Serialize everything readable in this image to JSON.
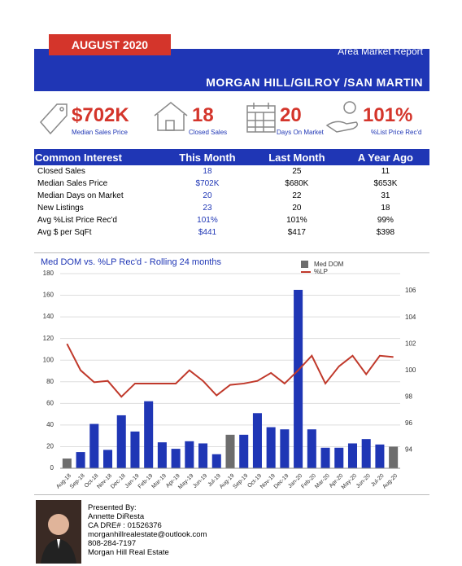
{
  "header": {
    "month": "AUGUST 2020",
    "report": "Area Market Report",
    "area": "MORGAN HILL/GILROY /SAN MARTIN"
  },
  "stats": [
    {
      "value": "$702K",
      "label": "Median Sales Price"
    },
    {
      "value": "18",
      "label": "Closed Sales"
    },
    {
      "value": "20",
      "label": "Days On Market"
    },
    {
      "value": "101%",
      "label": "%List Price Rec'd"
    }
  ],
  "table": {
    "header": [
      "Common Interest",
      "This Month",
      "Last Month",
      "A Year Ago"
    ],
    "rows": [
      [
        "Closed Sales",
        "18",
        "25",
        "11"
      ],
      [
        "Median Sales Price",
        "$702K",
        "$680K",
        "$653K"
      ],
      [
        "Median Days on Market",
        "20",
        "22",
        "31"
      ],
      [
        "New Listings",
        "23",
        "20",
        "18"
      ],
      [
        "Avg %List Price Rec'd",
        "101%",
        "101%",
        "99%"
      ],
      [
        "Avg $ per SqFt",
        "$441",
        "$417",
        "$398"
      ]
    ]
  },
  "chart_data": {
    "type": "bar-line",
    "title": "Med DOM vs. %LP Rec'd - Rolling 24 months",
    "categories": [
      "Aug-18",
      "Sep-18",
      "Oct-18",
      "Nov-18",
      "Dec-18",
      "Jan-19",
      "Feb-19",
      "Mar-19",
      "Apr-19",
      "May-19",
      "Jun-19",
      "Jul-19",
      "Aug-19",
      "Sep-19",
      "Oct-19",
      "Nov-19",
      "Dec-19",
      "Jan-20",
      "Feb-20",
      "Mar-20",
      "Apr-20",
      "May-20",
      "Jun-20",
      "Jul-20",
      "Aug-20"
    ],
    "series": [
      {
        "name": "Med DOM",
        "color": "#6d6d6d",
        "bar_colors": [
          "#6d6d6d",
          "#1f36b5",
          "#1f36b5",
          "#1f36b5",
          "#1f36b5",
          "#1f36b5",
          "#1f36b5",
          "#1f36b5",
          "#1f36b5",
          "#1f36b5",
          "#1f36b5",
          "#1f36b5",
          "#6d6d6d",
          "#1f36b5",
          "#1f36b5",
          "#1f36b5",
          "#1f36b5",
          "#1f36b5",
          "#1f36b5",
          "#1f36b5",
          "#1f36b5",
          "#1f36b5",
          "#1f36b5",
          "#1f36b5",
          "#6d6d6d"
        ],
        "values": [
          9,
          15,
          41,
          17,
          49,
          34,
          62,
          24,
          18,
          25,
          23,
          13,
          31,
          31,
          51,
          38,
          36,
          165,
          36,
          19,
          19,
          23,
          27,
          22,
          20
        ]
      },
      {
        "name": "%LP",
        "color": "#c0392b",
        "axis": "y2",
        "values": [
          102,
          100,
          99.1,
          99.2,
          98,
          99,
          99,
          99,
          99,
          100,
          99.2,
          98.1,
          98.9,
          99,
          99.2,
          99.8,
          99,
          100,
          101.1,
          99,
          100.3,
          101.1,
          99.7,
          101.1,
          101
        ]
      }
    ],
    "ylim": [
      0,
      180
    ],
    "yticks": [
      0,
      20,
      40,
      60,
      80,
      100,
      120,
      140,
      160,
      180
    ],
    "y2lim": [
      92.6,
      107.3
    ],
    "y2ticks": [
      94,
      96,
      98,
      100,
      102,
      104,
      106
    ],
    "grid": true,
    "legend": "top-right"
  },
  "footer": {
    "lines": [
      "Presented By:",
      "Annette DiResta",
      "CA DRE# : 01526376",
      "morganhillrealestate@outlook.com",
      "808-284-7197",
      "Morgan Hill Real Estate"
    ]
  }
}
